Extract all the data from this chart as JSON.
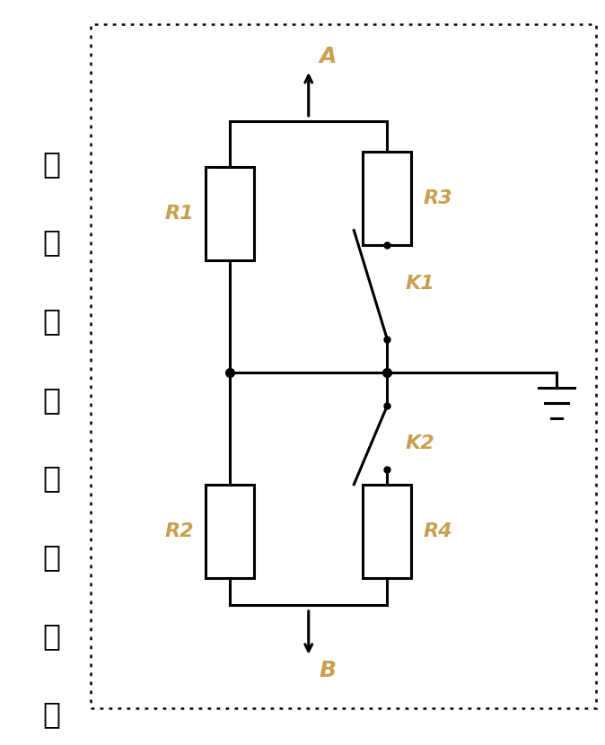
{
  "fig_width": 6.74,
  "fig_height": 8.3,
  "dpi": 100,
  "bg_color": "#ffffff",
  "line_color": "#000000",
  "text_color": "#c8a050",
  "chinese_color": "#000000",
  "border_color": "#000000",
  "chinese_text": "桥型电阱控制电路",
  "label_A": "A",
  "label_B": "B",
  "label_R1": "R1",
  "label_R2": "R2",
  "label_R3": "R3",
  "label_R4": "R4",
  "label_K1": "K1",
  "label_K2": "K2"
}
